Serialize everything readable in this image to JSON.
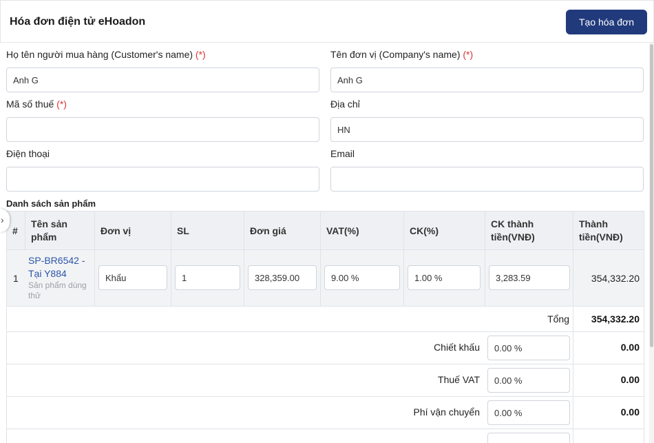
{
  "header": {
    "title": "Hóa đơn điện tử eHoadon",
    "create_button": "Tạo hóa đơn"
  },
  "form": {
    "customer_name": {
      "label": "Họ tên người mua hàng (Customer's name)",
      "required_mark": "(*)",
      "value": "Anh G"
    },
    "company_name": {
      "label": "Tên đơn vị (Company's name)",
      "required_mark": "(*)",
      "value": "Anh G"
    },
    "tax_code": {
      "label": "Mã số thuế",
      "required_mark": "(*)",
      "value": ""
    },
    "address": {
      "label": "Địa chỉ",
      "value": "HN"
    },
    "phone": {
      "label": "Điện thoại",
      "value": ""
    },
    "email": {
      "label": "Email",
      "value": ""
    }
  },
  "products": {
    "section_title": "Danh sách sản phẩm",
    "columns": {
      "index": "#",
      "name_l1": "Tên sản",
      "name_l2": "phẩm",
      "unit": "Đơn vị",
      "qty": "SL",
      "price": "Đơn giá",
      "vat": "VAT(%)",
      "ck": "CK(%)",
      "ck_amount_l1": "CK thành",
      "ck_amount_l2": "tiền(VNĐ)",
      "amount_l1": "Thành",
      "amount_l2": "tiền(VNĐ)"
    },
    "rows": [
      {
        "index": "1",
        "code_l1": "SP-BR6542 -",
        "code_l2": "Tại Y884",
        "desc_l1": "Sản phẩm dùng",
        "desc_l2": "thử",
        "unit": "Khẩu",
        "qty": "1",
        "price": "328,359.00",
        "vat": "9.00 %",
        "ck": "1.00 %",
        "ck_amount": "3,283.59",
        "amount": "354,332.20"
      }
    ]
  },
  "summary": {
    "total": {
      "label": "Tổng",
      "value": "354,332.20"
    },
    "discount": {
      "label": "Chiết khấu",
      "input": "0.00 %",
      "value": "0.00"
    },
    "vat": {
      "label": "Thuế VAT",
      "input": "0.00 %",
      "value": "0.00"
    },
    "shipping": {
      "label": "Phí vận chuyển",
      "input": "0.00 %",
      "value": "0.00"
    }
  },
  "colors": {
    "primary_button": "#213a7c",
    "required": "#dd3333",
    "link": "#2b55a6"
  }
}
